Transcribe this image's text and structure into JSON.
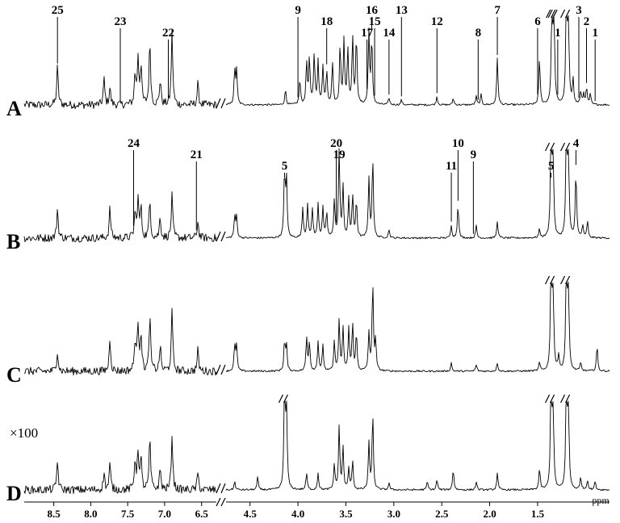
{
  "chart_data": {
    "type": "line",
    "title": "",
    "xlabel": "ppm",
    "ylabel": "",
    "x_reversed": true,
    "axis_break": {
      "from": 6.3,
      "to": 4.75
    },
    "xlim": [
      0.75,
      8.9
    ],
    "x_ticks": [
      {
        "value": 8.5,
        "label": "8.5"
      },
      {
        "value": 8.0,
        "label": "8.0"
      },
      {
        "value": 7.5,
        "label": "7.5"
      },
      {
        "value": 7.0,
        "label": "7.0"
      },
      {
        "value": 6.5,
        "label": "6.5"
      },
      {
        "value": 4.5,
        "label": "4.5"
      },
      {
        "value": 4.0,
        "label": "4.0"
      },
      {
        "value": 3.5,
        "label": "3.5"
      },
      {
        "value": 3.0,
        "label": "3.0"
      },
      {
        "value": 2.5,
        "label": "2.5"
      },
      {
        "value": 2.0,
        "label": "2.0"
      },
      {
        "value": 1.5,
        "label": "1.5"
      }
    ],
    "aromatic_region_scale": "×100",
    "spectra": [
      {
        "label": "A",
        "peaks": [
          {
            "ppm": 8.45,
            "h": 0.45
          },
          {
            "ppm": 7.82,
            "h": 0.3
          },
          {
            "ppm": 7.74,
            "h": 0.2
          },
          {
            "ppm": 7.4,
            "h": 0.35
          },
          {
            "ppm": 7.36,
            "h": 0.55
          },
          {
            "ppm": 7.32,
            "h": 0.45
          },
          {
            "ppm": 7.2,
            "h": 0.75
          },
          {
            "ppm": 7.06,
            "h": 0.3
          },
          {
            "ppm": 6.9,
            "h": 0.85
          },
          {
            "ppm": 6.55,
            "h": 0.25
          },
          {
            "ppm": 4.66,
            "h": 0.4
          },
          {
            "ppm": 4.64,
            "h": 0.4
          },
          {
            "ppm": 4.13,
            "h": 0.18
          },
          {
            "ppm": 3.98,
            "h": 0.3
          },
          {
            "ppm": 3.91,
            "h": 0.5
          },
          {
            "ppm": 3.88,
            "h": 0.55
          },
          {
            "ppm": 3.83,
            "h": 0.6
          },
          {
            "ppm": 3.79,
            "h": 0.5
          },
          {
            "ppm": 3.74,
            "h": 0.45
          },
          {
            "ppm": 3.7,
            "h": 0.4
          },
          {
            "ppm": 3.64,
            "h": 0.5
          },
          {
            "ppm": 3.56,
            "h": 0.7
          },
          {
            "ppm": 3.52,
            "h": 0.75
          },
          {
            "ppm": 3.48,
            "h": 0.65
          },
          {
            "ppm": 3.43,
            "h": 0.8
          },
          {
            "ppm": 3.39,
            "h": 0.82
          },
          {
            "ppm": 3.26,
            "h": 0.85
          },
          {
            "ppm": 3.23,
            "h": 0.78
          },
          {
            "ppm": 3.05,
            "h": 0.08
          },
          {
            "ppm": 2.92,
            "h": 0.06
          },
          {
            "ppm": 2.55,
            "h": 0.1
          },
          {
            "ppm": 2.38,
            "h": 0.08
          },
          {
            "ppm": 2.14,
            "h": 0.1
          },
          {
            "ppm": 2.09,
            "h": 0.12
          },
          {
            "ppm": 1.92,
            "h": 0.55
          },
          {
            "ppm": 1.48,
            "h": 0.55
          },
          {
            "ppm": 1.35,
            "h": 1.2
          },
          {
            "ppm": 1.33,
            "h": 1.2
          },
          {
            "ppm": 1.2,
            "h": 1.2
          },
          {
            "ppm": 1.18,
            "h": 1.2
          },
          {
            "ppm": 1.13,
            "h": 0.3
          },
          {
            "ppm": 1.05,
            "h": 0.15
          },
          {
            "ppm": 1.02,
            "h": 0.12
          },
          {
            "ppm": 0.99,
            "h": 0.2
          },
          {
            "ppm": 0.95,
            "h": 0.12
          }
        ],
        "annotations": [
          {
            "text": "25",
            "ppm": 8.45
          },
          {
            "text": "23",
            "ppm": 7.6
          },
          {
            "text": "22",
            "ppm": 6.95
          },
          {
            "text": "9",
            "ppm": 4.0
          },
          {
            "text": "18",
            "ppm": 3.7
          },
          {
            "text": "17",
            "ppm": 3.28
          },
          {
            "text": "16",
            "ppm": 3.23
          },
          {
            "text": "15",
            "ppm": 3.2
          },
          {
            "text": "14",
            "ppm": 3.05
          },
          {
            "text": "13",
            "ppm": 2.92
          },
          {
            "text": "12",
            "ppm": 2.55
          },
          {
            "text": "8",
            "ppm": 2.12
          },
          {
            "text": "7",
            "ppm": 1.92
          },
          {
            "text": "6",
            "ppm": 1.5
          },
          {
            "text": "1",
            "ppm": 1.29
          },
          {
            "text": "3",
            "ppm": 1.07
          },
          {
            "text": "2",
            "ppm": 0.99
          },
          {
            "text": "1",
            "ppm": 0.9
          }
        ]
      },
      {
        "label": "B",
        "peaks": [
          {
            "ppm": 8.45,
            "h": 0.35
          },
          {
            "ppm": 7.74,
            "h": 0.35
          },
          {
            "ppm": 7.4,
            "h": 0.3
          },
          {
            "ppm": 7.36,
            "h": 0.45
          },
          {
            "ppm": 7.32,
            "h": 0.35
          },
          {
            "ppm": 7.2,
            "h": 0.45
          },
          {
            "ppm": 7.06,
            "h": 0.25
          },
          {
            "ppm": 6.9,
            "h": 0.5
          },
          {
            "ppm": 6.55,
            "h": 0.2
          },
          {
            "ppm": 4.66,
            "h": 0.25
          },
          {
            "ppm": 4.64,
            "h": 0.25
          },
          {
            "ppm": 4.14,
            "h": 0.75
          },
          {
            "ppm": 4.12,
            "h": 0.7
          },
          {
            "ppm": 3.95,
            "h": 0.35
          },
          {
            "ppm": 3.9,
            "h": 0.4
          },
          {
            "ppm": 3.85,
            "h": 0.35
          },
          {
            "ppm": 3.79,
            "h": 0.4
          },
          {
            "ppm": 3.74,
            "h": 0.35
          },
          {
            "ppm": 3.7,
            "h": 0.3
          },
          {
            "ppm": 3.62,
            "h": 0.45
          },
          {
            "ppm": 3.57,
            "h": 1.05
          },
          {
            "ppm": 3.53,
            "h": 0.6
          },
          {
            "ppm": 3.47,
            "h": 0.45
          },
          {
            "ppm": 3.43,
            "h": 0.5
          },
          {
            "ppm": 3.39,
            "h": 0.45
          },
          {
            "ppm": 3.26,
            "h": 0.7
          },
          {
            "ppm": 3.22,
            "h": 0.95
          },
          {
            "ppm": 3.05,
            "h": 0.1
          },
          {
            "ppm": 2.4,
            "h": 0.15
          },
          {
            "ppm": 2.33,
            "h": 0.4
          },
          {
            "ppm": 2.14,
            "h": 0.15
          },
          {
            "ppm": 1.92,
            "h": 0.2
          },
          {
            "ppm": 1.48,
            "h": 0.1
          },
          {
            "ppm": 1.36,
            "h": 1.2
          },
          {
            "ppm": 1.34,
            "h": 1.2
          },
          {
            "ppm": 1.2,
            "h": 1.2
          },
          {
            "ppm": 1.18,
            "h": 1.2
          },
          {
            "ppm": 1.1,
            "h": 0.8
          },
          {
            "ppm": 1.03,
            "h": 0.15
          },
          {
            "ppm": 0.98,
            "h": 0.2
          }
        ],
        "annotations": [
          {
            "text": "24",
            "ppm": 7.42
          },
          {
            "text": "21",
            "ppm": 6.57
          },
          {
            "text": "5",
            "ppm": 4.14
          },
          {
            "text": "20",
            "ppm": 3.6
          },
          {
            "text": "19",
            "ppm": 3.57
          },
          {
            "text": "11",
            "ppm": 2.4
          },
          {
            "text": "10",
            "ppm": 2.33
          },
          {
            "text": "9",
            "ppm": 2.17
          },
          {
            "text": "5",
            "ppm": 1.36
          },
          {
            "text": "4",
            "ppm": 1.1
          }
        ]
      },
      {
        "label": "C",
        "peaks": [
          {
            "ppm": 8.45,
            "h": 0.25
          },
          {
            "ppm": 7.74,
            "h": 0.4
          },
          {
            "ppm": 7.4,
            "h": 0.35
          },
          {
            "ppm": 7.36,
            "h": 0.55
          },
          {
            "ppm": 7.32,
            "h": 0.45
          },
          {
            "ppm": 7.2,
            "h": 0.65
          },
          {
            "ppm": 7.06,
            "h": 0.3
          },
          {
            "ppm": 6.9,
            "h": 0.7
          },
          {
            "ppm": 6.55,
            "h": 0.25
          },
          {
            "ppm": 4.66,
            "h": 0.3
          },
          {
            "ppm": 4.64,
            "h": 0.3
          },
          {
            "ppm": 4.14,
            "h": 0.35
          },
          {
            "ppm": 4.12,
            "h": 0.3
          },
          {
            "ppm": 3.91,
            "h": 0.4
          },
          {
            "ppm": 3.88,
            "h": 0.35
          },
          {
            "ppm": 3.79,
            "h": 0.35
          },
          {
            "ppm": 3.74,
            "h": 0.3
          },
          {
            "ppm": 3.62,
            "h": 0.35
          },
          {
            "ppm": 3.57,
            "h": 0.6
          },
          {
            "ppm": 3.53,
            "h": 0.5
          },
          {
            "ppm": 3.47,
            "h": 0.5
          },
          {
            "ppm": 3.43,
            "h": 0.55
          },
          {
            "ppm": 3.39,
            "h": 0.45
          },
          {
            "ppm": 3.26,
            "h": 0.45
          },
          {
            "ppm": 3.22,
            "h": 1.05
          },
          {
            "ppm": 3.19,
            "h": 0.35
          },
          {
            "ppm": 2.4,
            "h": 0.1
          },
          {
            "ppm": 2.14,
            "h": 0.08
          },
          {
            "ppm": 1.92,
            "h": 0.1
          },
          {
            "ppm": 1.48,
            "h": 0.1
          },
          {
            "ppm": 1.36,
            "h": 1.2
          },
          {
            "ppm": 1.34,
            "h": 1.2
          },
          {
            "ppm": 1.28,
            "h": 0.18
          },
          {
            "ppm": 1.2,
            "h": 1.2
          },
          {
            "ppm": 1.18,
            "h": 1.2
          },
          {
            "ppm": 1.05,
            "h": 0.1
          },
          {
            "ppm": 0.88,
            "h": 0.3
          }
        ],
        "annotations": []
      },
      {
        "label": "D",
        "peaks": [
          {
            "ppm": 8.45,
            "h": 0.35
          },
          {
            "ppm": 7.82,
            "h": 0.2
          },
          {
            "ppm": 7.74,
            "h": 0.3
          },
          {
            "ppm": 7.4,
            "h": 0.35
          },
          {
            "ppm": 7.36,
            "h": 0.45
          },
          {
            "ppm": 7.32,
            "h": 0.35
          },
          {
            "ppm": 7.2,
            "h": 0.6
          },
          {
            "ppm": 7.06,
            "h": 0.25
          },
          {
            "ppm": 6.9,
            "h": 0.65
          },
          {
            "ppm": 6.55,
            "h": 0.2
          },
          {
            "ppm": 4.66,
            "h": 0.1
          },
          {
            "ppm": 4.42,
            "h": 0.15
          },
          {
            "ppm": 4.14,
            "h": 1.15
          },
          {
            "ppm": 4.12,
            "h": 1.05
          },
          {
            "ppm": 3.91,
            "h": 0.2
          },
          {
            "ppm": 3.79,
            "h": 0.2
          },
          {
            "ppm": 3.62,
            "h": 0.3
          },
          {
            "ppm": 3.57,
            "h": 0.75
          },
          {
            "ppm": 3.53,
            "h": 0.5
          },
          {
            "ppm": 3.47,
            "h": 0.25
          },
          {
            "ppm": 3.43,
            "h": 0.35
          },
          {
            "ppm": 3.26,
            "h": 0.55
          },
          {
            "ppm": 3.22,
            "h": 0.9
          },
          {
            "ppm": 3.05,
            "h": 0.08
          },
          {
            "ppm": 2.65,
            "h": 0.1
          },
          {
            "ppm": 2.55,
            "h": 0.12
          },
          {
            "ppm": 2.38,
            "h": 0.25
          },
          {
            "ppm": 2.14,
            "h": 0.1
          },
          {
            "ppm": 1.92,
            "h": 0.2
          },
          {
            "ppm": 1.48,
            "h": 0.25
          },
          {
            "ppm": 1.36,
            "h": 1.2
          },
          {
            "ppm": 1.34,
            "h": 1.2
          },
          {
            "ppm": 1.2,
            "h": 1.2
          },
          {
            "ppm": 1.18,
            "h": 1.2
          },
          {
            "ppm": 1.05,
            "h": 0.15
          },
          {
            "ppm": 0.98,
            "h": 0.12
          },
          {
            "ppm": 0.9,
            "h": 0.1
          }
        ],
        "annotations": []
      }
    ]
  }
}
